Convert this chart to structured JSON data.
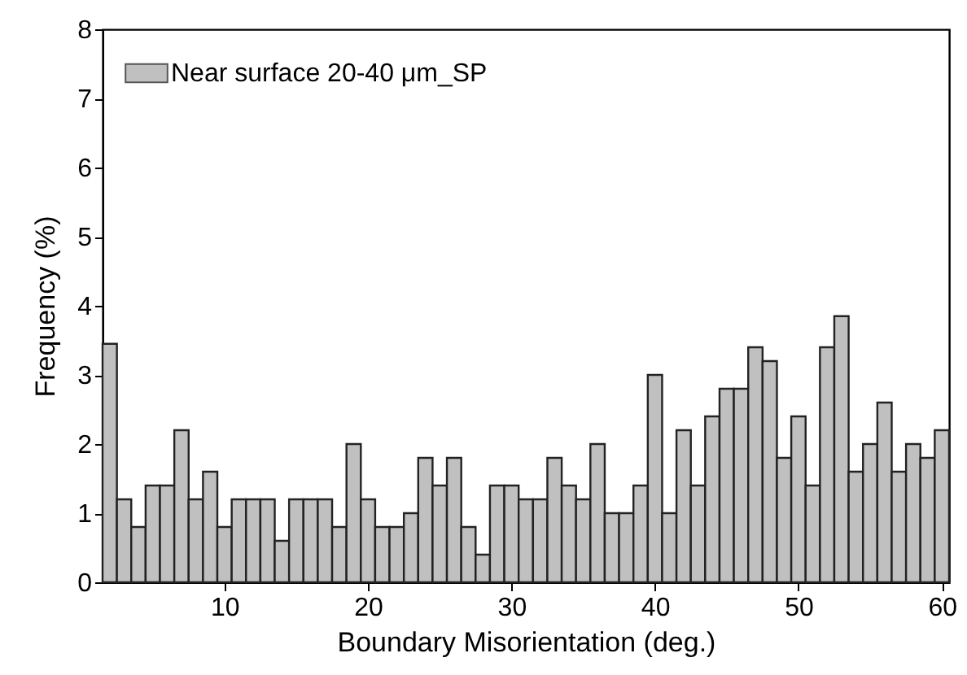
{
  "chart_data": {
    "type": "histogram",
    "xlabel": "Boundary Misorientation (deg.)",
    "ylabel": "Frequency (%)",
    "bins": [
      1.5,
      2.5,
      3.5,
      4.5,
      5.5,
      6.5,
      7.5,
      8.5,
      9.5,
      10.5,
      11.5,
      12.5,
      13.5,
      14.5,
      15.5,
      16.5,
      17.5,
      18.5,
      19.5,
      20.5,
      21.5,
      22.5,
      23.5,
      24.5,
      25.5,
      26.5,
      27.5,
      28.5,
      29.5,
      30.5,
      31.5,
      32.5,
      33.5,
      34.5,
      35.5,
      36.5,
      37.5,
      38.5,
      39.5,
      40.5,
      41.5,
      42.5,
      43.5,
      44.5,
      45.5,
      46.5,
      47.5,
      48.5,
      49.5,
      50.5,
      51.5,
      52.5,
      53.5,
      54.5,
      55.5,
      56.5,
      57.5,
      58.5,
      59.5,
      60.5
    ],
    "series": [
      {
        "name": "Near surface 20-40 μm_SP",
        "color": "#c0c0c0",
        "values": [
          3.45,
          1.2,
          0.8,
          1.4,
          1.4,
          2.2,
          1.2,
          1.6,
          0.8,
          1.2,
          1.2,
          1.2,
          0.6,
          1.2,
          1.2,
          1.2,
          0.8,
          2.0,
          1.2,
          0.8,
          0.8,
          1.0,
          1.8,
          1.4,
          1.8,
          0.8,
          0.4,
          1.4,
          1.4,
          1.2,
          1.2,
          1.8,
          1.4,
          1.2,
          2.0,
          1.0,
          1.0,
          1.4,
          3.0,
          1.0,
          2.2,
          1.4,
          2.4,
          2.8,
          2.8,
          3.4,
          3.2,
          1.8,
          2.4,
          1.4,
          3.4,
          3.85,
          1.6,
          2.0,
          2.6,
          1.6,
          2.0,
          1.8,
          2.2
        ]
      }
    ],
    "xlim": [
      1.5,
      60.5
    ],
    "xticks": [
      10,
      20,
      30,
      40,
      50,
      60
    ],
    "ylim": [
      0,
      8
    ],
    "yticks": [
      0,
      1,
      2,
      3,
      4,
      5,
      6,
      7,
      8
    ],
    "grid": false,
    "legend": "top left"
  }
}
